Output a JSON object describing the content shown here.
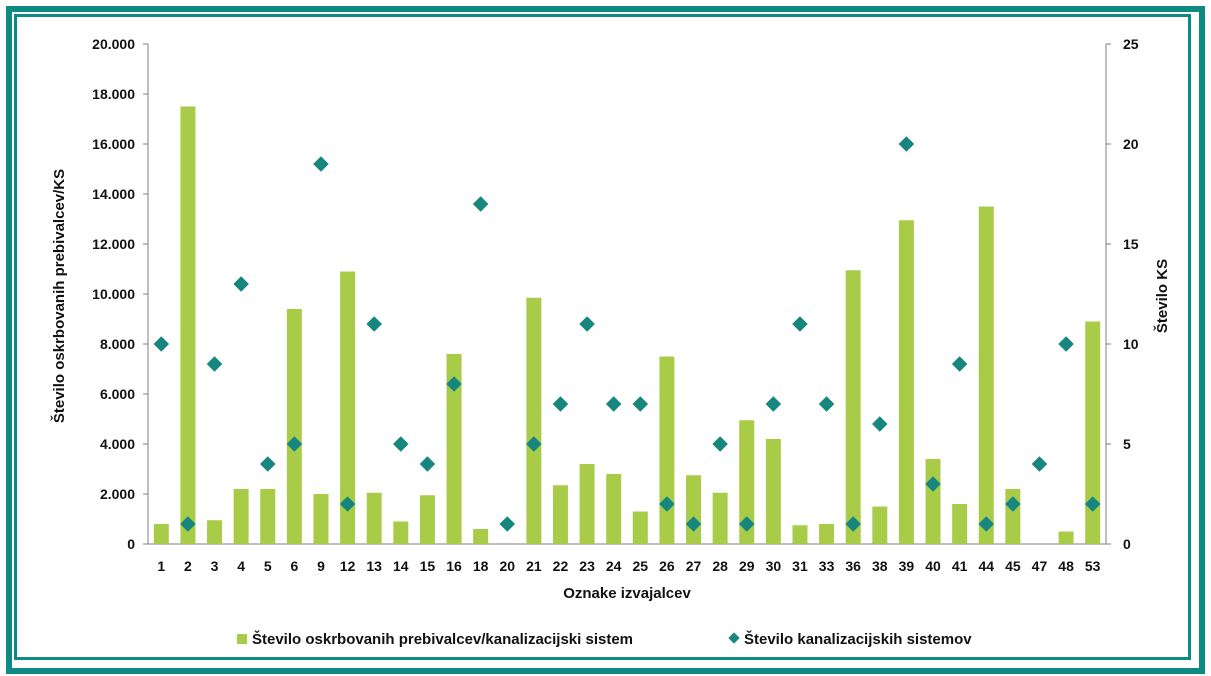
{
  "colors": {
    "bar": "#a8cc48",
    "marker": "#16867f",
    "frame": "#0e8a84"
  },
  "chart_data": {
    "type": "bar",
    "xlabel": "Oznake izvajalcev",
    "ylabel": "Število oskrbovanih prebivalcev/KS",
    "y2label": "Število KS",
    "ylim": [
      0,
      20000
    ],
    "y2lim": [
      0,
      25
    ],
    "y_ticks": [
      "0",
      "2.000",
      "4.000",
      "6.000",
      "8.000",
      "10.000",
      "12.000",
      "14.000",
      "16.000",
      "18.000",
      "20.000"
    ],
    "y2_ticks": [
      "0",
      "5",
      "10",
      "15",
      "20",
      "25"
    ],
    "grid": false,
    "legend_position": "bottom",
    "categories": [
      "1",
      "2",
      "3",
      "4",
      "5",
      "6",
      "9",
      "12",
      "13",
      "14",
      "15",
      "16",
      "18",
      "20",
      "21",
      "22",
      "23",
      "24",
      "25",
      "26",
      "27",
      "28",
      "29",
      "30",
      "31",
      "33",
      "36",
      "38",
      "39",
      "40",
      "41",
      "44",
      "45",
      "47",
      "48",
      "53"
    ],
    "series": [
      {
        "name": "Število oskrbovanih prebivalcev/kanalizacijski sistem",
        "type": "bar",
        "axis": "left",
        "values": [
          800,
          17500,
          950,
          2200,
          2200,
          9400,
          2000,
          10900,
          2050,
          900,
          1950,
          7600,
          600,
          0,
          9850,
          2350,
          3200,
          2800,
          1300,
          7500,
          2750,
          2050,
          4950,
          4200,
          750,
          800,
          10950,
          1500,
          12950,
          3400,
          1600,
          13500,
          2200,
          0,
          500,
          8900
        ]
      },
      {
        "name": "Število kanalizacijskih sistemov",
        "type": "scatter",
        "axis": "right",
        "values": [
          10,
          1,
          9,
          13,
          4,
          5,
          19,
          2,
          11,
          5,
          4,
          8,
          17,
          1,
          5,
          7,
          11,
          7,
          7,
          2,
          1,
          5,
          1,
          7,
          11,
          7,
          1,
          6,
          20,
          3,
          9,
          1,
          2,
          4,
          10,
          2
        ]
      }
    ]
  }
}
